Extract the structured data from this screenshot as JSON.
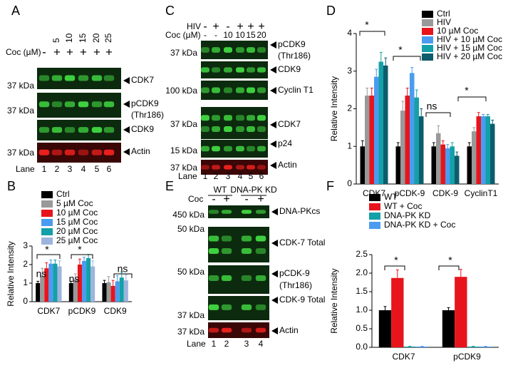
{
  "panels": {
    "A": {
      "letter": "A",
      "coc_label": "Coc (µM)",
      "conc": [
        "5",
        "10",
        "15",
        "20",
        "25"
      ],
      "coc": [
        "-",
        "+",
        "+",
        "+",
        "+",
        "+"
      ],
      "blots": [
        {
          "kda": "37 kDa",
          "label": "CDK7"
        },
        {
          "kda": "37 kDa",
          "label": "pCDK9",
          "sub": "(Thr186)"
        },
        {
          "label": "CDK9"
        },
        {
          "kda": "37 kDa",
          "label": "Actin"
        }
      ],
      "lane_label": "Lane",
      "lanes": [
        "1",
        "2",
        "3",
        "4",
        "5",
        "6"
      ]
    },
    "C": {
      "letter": "C",
      "hiv_label": "HIV",
      "hiv": [
        "-",
        "+",
        "-",
        "+",
        "+",
        "+"
      ],
      "coc_label": "Coc (µM)",
      "coc": [
        "-",
        "-",
        "10",
        "10",
        "15",
        "20"
      ],
      "blots": [
        {
          "kda": "37 kDa",
          "label": "pCDK9",
          "sub": "(Thr186)"
        },
        {
          "label": "CDK9"
        },
        {
          "kda": "100 kDa",
          "label": "Cyclin T1"
        },
        {
          "kda": "37 kDa",
          "label": "CDK7"
        },
        {
          "kda": "15 kDa",
          "label": "p24"
        },
        {
          "kda": "37 kDa",
          "label": "Actin"
        }
      ],
      "lane_label": "Lane",
      "lanes": [
        "1",
        "2",
        "3",
        "4",
        "5",
        "6"
      ]
    },
    "E": {
      "letter": "E",
      "groups": [
        "WT",
        "DNA-PK KD"
      ],
      "coc_label": "Coc",
      "coc": [
        "-",
        "+",
        "-",
        "+"
      ],
      "blots": [
        {
          "kda": "450 kDa",
          "label": "DNA-PKcs"
        },
        {
          "kda": "50 kDa",
          "label": "CDK-7 Total"
        },
        {
          "kda": "50 kDa",
          "label": "pCDK-9",
          "sub": "(Thr186)"
        },
        {
          "kda": "37 kDa",
          "label": "CDK-9 Total"
        },
        {
          "kda": "37 kDa",
          "label": "Actin"
        }
      ],
      "lane_label": "Lane",
      "lanes": [
        "1",
        "2",
        "3",
        "4"
      ]
    }
  },
  "chart_data": [
    {
      "type": "bar",
      "letter": "B",
      "ylabel": "Relative Intensity",
      "categories": [
        "CDK7",
        "pCDK9",
        "CDK9"
      ],
      "ylim": [
        0,
        3
      ],
      "yticks": [
        0,
        1,
        2,
        3
      ],
      "legend": "top-left",
      "series": [
        {
          "name": "Ctrl",
          "color": "#000000",
          "values": [
            1,
            1,
            1
          ],
          "errors": [
            0.1,
            0.1,
            0.15
          ]
        },
        {
          "name": "5 µM Coc",
          "color": "#999999",
          "values": [
            1.4,
            1.2,
            1.05
          ],
          "errors": [
            0.4,
            0.3,
            0.3
          ]
        },
        {
          "name": "10 µM Coc",
          "color": "#e8141c",
          "values": [
            1.8,
            2.0,
            0.85
          ],
          "errors": [
            0.3,
            0.3,
            0.3
          ]
        },
        {
          "name": "15 µM Coc",
          "color": "#4b9cf0",
          "values": [
            2.05,
            2.2,
            1.1
          ],
          "errors": [
            0.2,
            0.2,
            0.3
          ]
        },
        {
          "name": "20 µM Coc",
          "color": "#14a0a8",
          "values": [
            2.05,
            2.35,
            1.3
          ],
          "errors": [
            0.2,
            0.2,
            0.3
          ]
        },
        {
          "name": "25 µM Coc",
          "color": "#9db4dc",
          "values": [
            1.9,
            1.9,
            1.15
          ],
          "errors": [
            0.3,
            0.3,
            0.3
          ]
        }
      ],
      "annotations": [
        "*",
        "ns",
        "*",
        "ns",
        "ns"
      ]
    },
    {
      "type": "bar",
      "letter": "D",
      "ylabel": "Relative Intensity",
      "categories": [
        "CDK7",
        "pCDK-9",
        "CDK-9",
        "CyclinT1"
      ],
      "ylim": [
        0,
        4
      ],
      "yticks": [
        0,
        1,
        2,
        3,
        4
      ],
      "legend": "top-right",
      "series": [
        {
          "name": "Ctrl",
          "color": "#000000",
          "values": [
            1,
            1,
            1,
            1
          ],
          "errors": [
            0.15,
            0.1,
            0.1,
            0.1
          ]
        },
        {
          "name": "HIV",
          "color": "#999999",
          "values": [
            2.35,
            1.95,
            1.35,
            1.4
          ],
          "errors": [
            0.2,
            0.25,
            0.2,
            0.1
          ]
        },
        {
          "name": "10 µM Coc",
          "color": "#e8141c",
          "values": [
            2.35,
            2.35,
            1.05,
            1.8
          ],
          "errors": [
            0.2,
            0.2,
            0.1,
            0.1
          ]
        },
        {
          "name": "HIV + 10 µM Coc",
          "color": "#4b9cf0",
          "values": [
            2.85,
            2.95,
            0.95,
            1.8
          ],
          "errors": [
            0.2,
            0.15,
            0.1,
            0.05
          ]
        },
        {
          "name": "HIV + 15 µM Coc",
          "color": "#14a0a8",
          "values": [
            3.25,
            2.3,
            1.0,
            1.8
          ],
          "errors": [
            0.25,
            0.2,
            0.1,
            0.05
          ]
        },
        {
          "name": "HIV + 20 µM Coc",
          "color": "#0d5c6c",
          "values": [
            3.15,
            1.8,
            0.75,
            1.6
          ],
          "errors": [
            0.2,
            0.2,
            0.1,
            0.1
          ]
        }
      ],
      "annotations": [
        "*",
        "*",
        "ns",
        "*"
      ]
    },
    {
      "type": "bar",
      "letter": "F",
      "ylabel": "Relative Intensity",
      "categories": [
        "CDK7",
        "pCDK9"
      ],
      "ylim": [
        0,
        2.5
      ],
      "yticks": [
        {
          "value": 0,
          "label": "0.0"
        },
        0.5,
        {
          "value": 1,
          "label": "1.0"
        },
        1.5,
        {
          "value": 2,
          "label": "2.0"
        },
        2.5
      ],
      "legend": "top-left",
      "series": [
        {
          "name": "WT",
          "color": "#000000",
          "values": [
            1.0,
            1.0
          ],
          "errors": [
            0.1,
            0.07
          ]
        },
        {
          "name": "WT + Coc",
          "color": "#e8141c",
          "values": [
            1.87,
            1.9
          ],
          "errors": [
            0.22,
            0.2
          ]
        },
        {
          "name": "DNA-PK KD",
          "color": "#14a0a8",
          "values": [
            0.02,
            0.02
          ],
          "errors": [
            0.01,
            0.01
          ]
        },
        {
          "name": "DNA-PK KD + Coc",
          "color": "#4b9cf0",
          "values": [
            0.02,
            0.02
          ],
          "errors": [
            0.01,
            0.01
          ]
        }
      ],
      "annotations": [
        "*",
        "*"
      ]
    }
  ]
}
